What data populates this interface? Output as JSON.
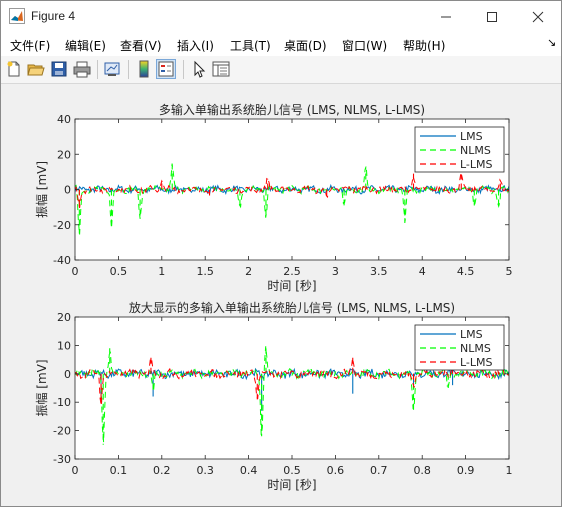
{
  "window": {
    "title": "Figure 4",
    "minimize_icon": "minimize-icon",
    "maximize_icon": "maximize-icon",
    "close_icon": "close-icon"
  },
  "menu": {
    "items": [
      "文件(F)",
      "编辑(E)",
      "查看(V)",
      "插入(I)",
      "工具(T)",
      "桌面(D)",
      "窗口(W)",
      "帮助(H)"
    ],
    "dock_glyph": "↘"
  },
  "toolbar": {
    "icons": [
      "new-figure-icon",
      "open-file-icon",
      "save-icon",
      "print-icon",
      "link-plot-icon",
      "colorbar-icon",
      "legend-icon",
      "pointer-icon",
      "property-inspector-icon"
    ]
  },
  "colors": {
    "lms": "#0072BD",
    "nlms": "#00FF00",
    "llms": "#FF0000",
    "figure_bg": "#f0f0f0"
  },
  "chart_data": [
    {
      "type": "line",
      "title": "多输入单输出系统胎儿信号 (LMS, NLMS, L-LMS)",
      "xlabel": "时间 [秒]",
      "ylabel": "振幅 [mV]",
      "xlim": [
        0,
        5
      ],
      "ylim": [
        -40,
        40
      ],
      "xticks": [
        "0",
        "0.5",
        "1",
        "1.5",
        "2",
        "2.5",
        "3",
        "3.5",
        "4",
        "4.5",
        "5"
      ],
      "yticks": [
        "40",
        "20",
        "0",
        "-20",
        "-40"
      ],
      "legend": [
        "LMS",
        "NLMS",
        "L-LMS"
      ],
      "legend_position": "top-right",
      "grid": false,
      "series": [
        {
          "name": "LMS",
          "style": "solid",
          "x": [
            0,
            0.5,
            1,
            1.5,
            2,
            2.5,
            3,
            3.5,
            4,
            4.5,
            5
          ],
          "y": [
            0,
            0,
            0,
            0,
            0,
            0,
            0,
            0,
            0,
            0,
            0
          ]
        },
        {
          "name": "NLMS",
          "style": "dashed",
          "x": [
            0.05,
            0.42,
            0.75,
            1.12,
            1.9,
            2.2,
            3.1,
            3.35,
            3.8,
            4.6,
            4.88
          ],
          "y": [
            -25,
            -22,
            -17,
            13,
            -10,
            -15,
            -9,
            12,
            -19,
            -10,
            -11
          ]
        },
        {
          "name": "L-LMS",
          "style": "dashed",
          "x": [
            0.05,
            1.0,
            1.55,
            2.22,
            2.9,
            3.9,
            4.45,
            4.9
          ],
          "y": [
            -9,
            5,
            -4,
            6,
            -5,
            9,
            8,
            4
          ]
        }
      ]
    },
    {
      "type": "line",
      "title": "放大显示的多输入单输出系统胎儿信号 (LMS, NLMS, L-LMS)",
      "xlabel": "时间 [秒]",
      "ylabel": "振幅 [mV]",
      "xlim": [
        0,
        1
      ],
      "ylim": [
        -30,
        20
      ],
      "xticks": [
        "0",
        "0.1",
        "0.2",
        "0.3",
        "0.4",
        "0.5",
        "0.6",
        "0.7",
        "0.8",
        "0.9",
        "1"
      ],
      "yticks": [
        "20",
        "10",
        "0",
        "-10",
        "-20",
        "-30"
      ],
      "legend": [
        "LMS",
        "NLMS",
        "L-LMS"
      ],
      "legend_position": "top-right",
      "grid": false,
      "series": [
        {
          "name": "LMS",
          "style": "solid",
          "x": [
            0,
            0.06,
            0.18,
            0.43,
            0.64,
            0.78,
            0.87,
            1
          ],
          "y": [
            0,
            -9,
            -8,
            -13,
            -7,
            -4,
            -4,
            0
          ]
        },
        {
          "name": "NLMS",
          "style": "dashed",
          "x": [
            0.065,
            0.08,
            0.18,
            0.43,
            0.44,
            0.78,
            0.86
          ],
          "y": [
            -25,
            9,
            -6,
            -22,
            9,
            -13,
            -5
          ]
        },
        {
          "name": "L-LMS",
          "style": "dashed",
          "x": [
            0.06,
            0.175,
            0.42,
            0.64,
            0.78,
            0.87
          ],
          "y": [
            -10,
            6,
            -9,
            6,
            -4,
            5
          ]
        }
      ]
    }
  ]
}
